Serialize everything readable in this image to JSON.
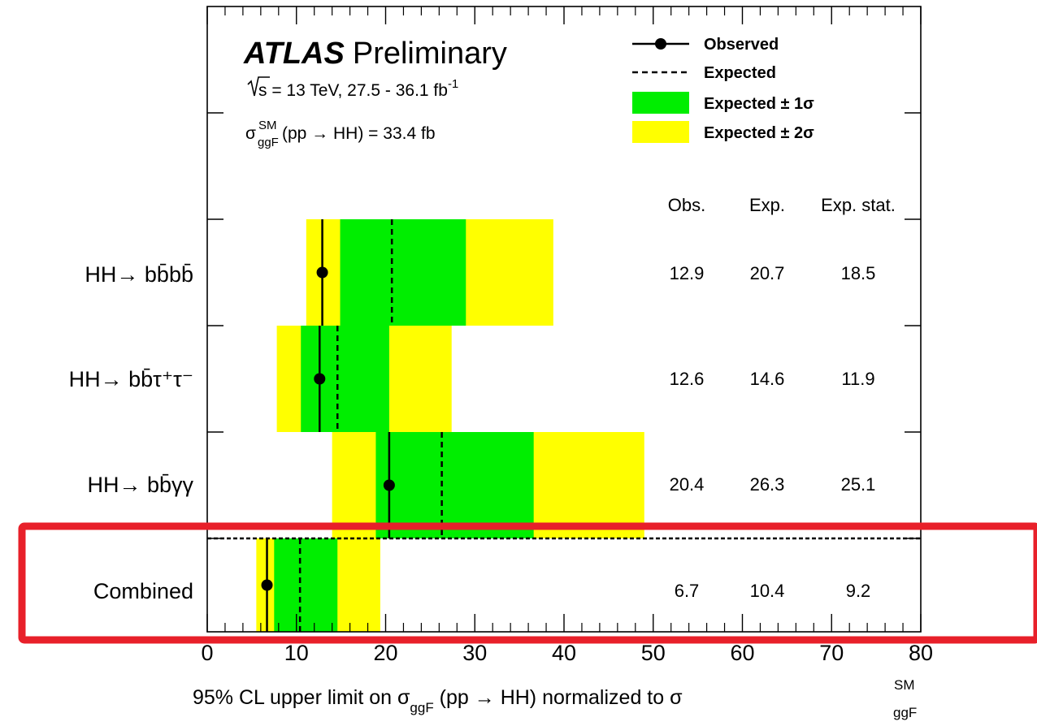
{
  "chart_data": {
    "type": "forest",
    "header": {
      "experiment": "ATLAS",
      "status": "Preliminary",
      "energy_prefix": "s",
      "energy_text": " = 13 TeV,  27.5 - 36.1 fb",
      "energy_sup": "-1",
      "xsec_sigma": "σ",
      "xsec_sup": "SM",
      "xsec_sub": "ggF",
      "xsec_text": " (pp → HH) = 33.4 fb"
    },
    "legend": [
      {
        "label": "Observed",
        "style": "marker-line"
      },
      {
        "label": "Expected",
        "style": "dashed"
      },
      {
        "label": "Expected ± 1σ",
        "style": "fill",
        "color": "#00ee00"
      },
      {
        "label": "Expected ± 2σ",
        "style": "fill",
        "color": "#ffff00"
      }
    ],
    "columns": [
      "Obs.",
      "Exp.",
      "Exp. stat."
    ],
    "rows": [
      {
        "label": "HH→ bb̄bb̄",
        "observed": 12.9,
        "expected": 20.7,
        "exp_stat": 18.5,
        "band1": [
          14.9,
          29.0
        ],
        "band2": [
          11.1,
          38.8
        ],
        "obs_text": "12.9",
        "exp_text": "20.7",
        "stat_text": "18.5"
      },
      {
        "label": "HH→ bb̄τ⁺τ⁻",
        "observed": 12.6,
        "expected": 14.6,
        "exp_stat": 11.9,
        "band1": [
          10.5,
          20.4
        ],
        "band2": [
          7.8,
          27.4
        ],
        "obs_text": "12.6",
        "exp_text": "14.6",
        "stat_text": "11.9"
      },
      {
        "label": "HH→ bb̄γγ",
        "observed": 20.4,
        "expected": 26.3,
        "exp_stat": 25.1,
        "band1": [
          18.9,
          36.6
        ],
        "band2": [
          14.0,
          49.0
        ],
        "obs_text": "20.4",
        "exp_text": "26.3",
        "stat_text": "25.1"
      },
      {
        "label": "Combined",
        "observed": 6.7,
        "expected": 10.4,
        "exp_stat": 9.2,
        "band1": [
          7.5,
          14.6
        ],
        "band2": [
          5.5,
          19.4
        ],
        "obs_text": "6.7",
        "exp_text": "10.4",
        "stat_text": "9.2"
      }
    ],
    "xlim": [
      0,
      80
    ],
    "xticks": [
      0,
      10,
      20,
      30,
      40,
      50,
      60,
      70,
      80
    ],
    "xlabel": {
      "text": "95% CL upper limit on σ",
      "sub1": "ggF",
      "mid": " (pp → HH) normalized to σ",
      "sup2": "SM",
      "sub2": "ggF"
    },
    "highlight": {
      "row": "Combined",
      "color": "#e8202a"
    },
    "colors": {
      "band1": "#00ee00",
      "band2": "#ffff00",
      "line": "#000000"
    }
  }
}
